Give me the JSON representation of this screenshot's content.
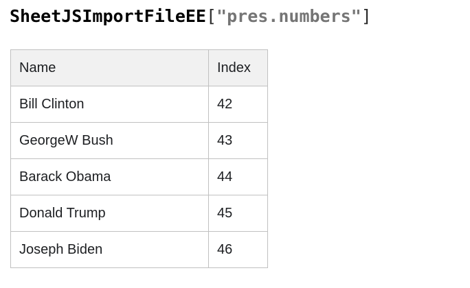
{
  "title": {
    "object_name": "SheetJSImportFileEE",
    "bracket_open": "[",
    "string_value": "\"pres.numbers\"",
    "bracket_close": "]"
  },
  "table": {
    "columns": {
      "name": "Name",
      "index": "Index"
    },
    "rows": [
      {
        "name": "Bill Clinton",
        "index": "42"
      },
      {
        "name": "GeorgeW Bush",
        "index": "43"
      },
      {
        "name": "Barack Obama",
        "index": "44"
      },
      {
        "name": "Donald Trump",
        "index": "45"
      },
      {
        "name": "Joseph Biden",
        "index": "46"
      }
    ]
  },
  "colors": {
    "title_text": "#000000",
    "title_bracket": "#2b2b2b",
    "title_string": "#757575",
    "header_bg": "#f1f1f1",
    "border": "#c0c0c0",
    "cell_text": "#1c1e21",
    "page_bg": "#ffffff"
  }
}
